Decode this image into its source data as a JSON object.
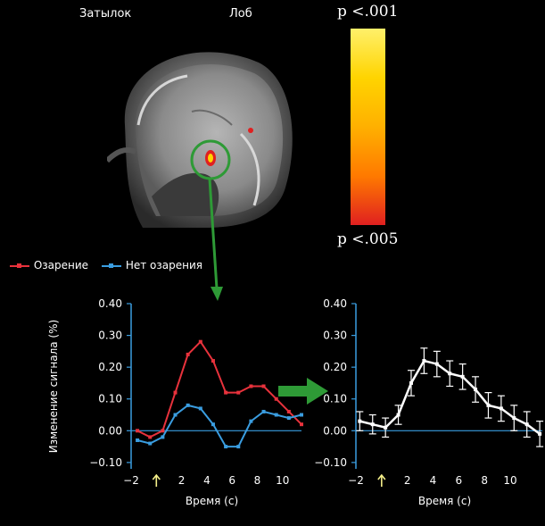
{
  "header": {
    "label_back": "Затылок",
    "label_front": "Лоб"
  },
  "colorbar": {
    "top_label": "p <.001",
    "bottom_label": "p <.005",
    "colors": [
      "#fff06a",
      "#ffd400",
      "#ffb000",
      "#ff7a00",
      "#e02020"
    ]
  },
  "brain": {
    "highlight_color": "#2e9a36"
  },
  "legend": {
    "items": [
      {
        "label": "Озарение",
        "color": "#e8323c"
      },
      {
        "label": "Нет озарения",
        "color": "#3a9de0"
      }
    ]
  },
  "chart_data": [
    {
      "type": "line",
      "xlabel": "Время (с)",
      "ylabel": "Изменение сигнала (%)",
      "xlim": [
        -2,
        11.5
      ],
      "ylim": [
        -0.12,
        0.4
      ],
      "xticks": [
        "−2",
        "2",
        "4",
        "6",
        "8",
        "10"
      ],
      "yticks": [
        "0.40",
        "0.30",
        "0.20",
        "0.10",
        "0.00",
        "−0.10"
      ],
      "marker_x": 0,
      "series": [
        {
          "name": "Озарение",
          "color": "#e8323c",
          "x": [
            -1.5,
            -0.5,
            0.5,
            1.5,
            2.5,
            3.5,
            4.5,
            5.5,
            6.5,
            7.5,
            8.5,
            9.5,
            10.5,
            11.5
          ],
          "y": [
            0.0,
            -0.02,
            0.0,
            0.12,
            0.24,
            0.28,
            0.22,
            0.12,
            0.12,
            0.14,
            0.14,
            0.1,
            0.06,
            0.02
          ]
        },
        {
          "name": "Нет озарения",
          "color": "#3a9de0",
          "x": [
            -1.5,
            -0.5,
            0.5,
            1.5,
            2.5,
            3.5,
            4.5,
            5.5,
            6.5,
            7.5,
            8.5,
            9.5,
            10.5,
            11.5
          ],
          "y": [
            -0.03,
            -0.04,
            -0.02,
            0.05,
            0.08,
            0.07,
            0.02,
            -0.05,
            -0.05,
            0.03,
            0.06,
            0.05,
            0.04,
            0.05
          ]
        }
      ]
    },
    {
      "type": "line",
      "xlabel": "Время (с)",
      "ylabel": "",
      "xlim": [
        -2,
        12.5
      ],
      "ylim": [
        -0.12,
        0.4
      ],
      "xticks": [
        "−2",
        "2",
        "4",
        "6",
        "8",
        "10"
      ],
      "yticks": [
        "0.40",
        "0.30",
        "0.20",
        "0.10",
        "0.00",
        "−0.10"
      ],
      "marker_x": 0,
      "series": [
        {
          "name": "",
          "color": "#ffffff",
          "x": [
            -1.7,
            -0.7,
            0.3,
            1.3,
            2.3,
            3.3,
            4.3,
            5.3,
            6.3,
            7.3,
            8.3,
            9.3,
            10.3,
            11.3,
            12.3
          ],
          "y": [
            0.03,
            0.02,
            0.01,
            0.05,
            0.15,
            0.22,
            0.21,
            0.18,
            0.17,
            0.13,
            0.08,
            0.07,
            0.04,
            0.02,
            -0.01
          ],
          "err": [
            0.03,
            0.03,
            0.03,
            0.03,
            0.04,
            0.04,
            0.04,
            0.04,
            0.04,
            0.04,
            0.04,
            0.04,
            0.04,
            0.04,
            0.04
          ]
        }
      ]
    }
  ]
}
